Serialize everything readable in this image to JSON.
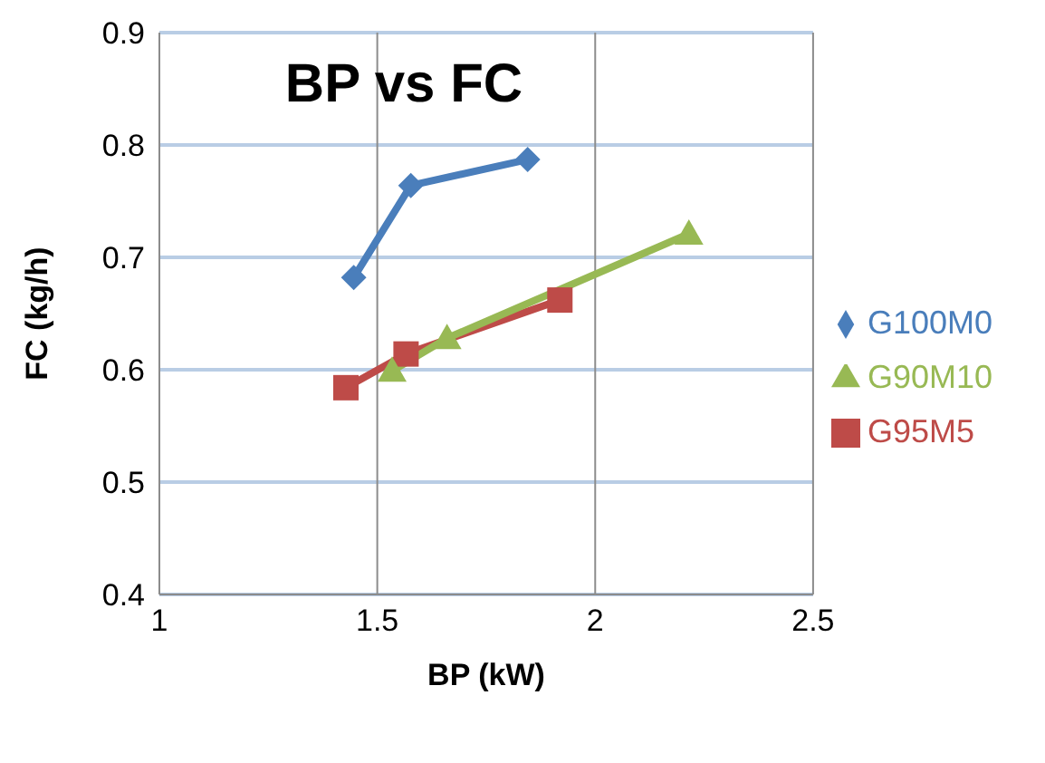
{
  "chart_data": {
    "type": "line",
    "title": "BP vs FC",
    "xlabel": "BP (kW)",
    "ylabel": "FC (kg/h)",
    "xlim": [
      1,
      2.5
    ],
    "xticks": [
      1,
      1.5,
      2,
      2.5
    ],
    "ylim": [
      0.4,
      0.9
    ],
    "yticks": [
      0.4,
      0.5,
      0.6,
      0.7,
      0.8,
      0.9
    ],
    "grid": true,
    "legend": "right",
    "line_style": "solid",
    "series": [
      {
        "name": "G100M0",
        "color": "#4a7ebb",
        "marker": "diamond",
        "x": [
          1.446,
          1.577,
          1.845
        ],
        "values": [
          0.682,
          0.764,
          0.787
        ]
      },
      {
        "name": "G95M5",
        "color": "#be4b48",
        "marker": "square",
        "x": [
          1.428,
          1.566,
          1.919
        ],
        "values": [
          0.584,
          0.614,
          0.662
        ]
      },
      {
        "name": "G90M10",
        "color": "#98b954",
        "marker": "triangle",
        "x": [
          1.534,
          1.66,
          2.215
        ],
        "values": [
          0.599,
          0.628,
          0.721
        ]
      }
    ]
  }
}
